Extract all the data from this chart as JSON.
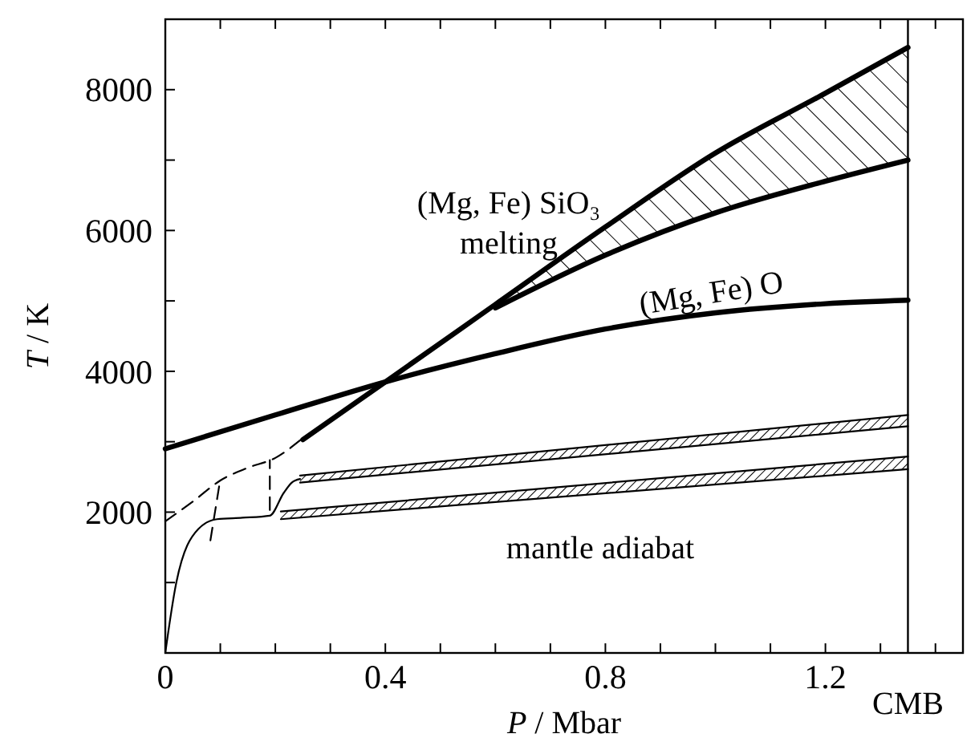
{
  "chart_data": {
    "type": "line",
    "xlabel": "P / Mbar",
    "ylabel": "T / K",
    "xlim": [
      0,
      1.45
    ],
    "ylim": [
      0,
      9000
    ],
    "xticks": [
      0,
      {
        "value": 0.1,
        "label": null
      },
      {
        "value": 0.2,
        "label": null
      },
      {
        "value": 0.3,
        "label": null
      },
      0.4,
      {
        "value": 0.5,
        "label": null
      },
      {
        "value": 0.6,
        "label": null
      },
      {
        "value": 0.7,
        "label": null
      },
      0.8,
      {
        "value": 0.9,
        "label": null
      },
      {
        "value": 1.0,
        "label": null
      },
      {
        "value": 1.1,
        "label": null
      },
      1.2,
      {
        "value": 1.3,
        "label": null
      },
      {
        "value": 1.4,
        "label": null
      }
    ],
    "yticks": [
      {
        "value": 1000,
        "label": null
      },
      2000,
      {
        "value": 3000,
        "label": null
      },
      4000,
      {
        "value": 5000,
        "label": null
      },
      6000,
      {
        "value": 7000,
        "label": null
      },
      8000
    ],
    "grid": false,
    "series": [
      {
        "color": "#000000",
        "x": [
          0,
          0.2,
          0.4,
          0.6,
          0.8,
          1.0,
          1.2,
          1.35
        ],
        "values": [
          2900,
          3380,
          3850,
          4250,
          4600,
          4830,
          4960,
          5010
        ]
      },
      {
        "color": "#000000",
        "x": [
          0.25,
          0.4,
          0.6,
          0.8,
          1.0,
          1.2,
          1.35
        ],
        "values": [
          3030,
          3850,
          4950,
          6050,
          7100,
          7950,
          8600
        ],
        "lower": [
          null,
          null,
          4900,
          5650,
          6250,
          6700,
          7000
        ],
        "upper": [
          null,
          null,
          4950,
          6050,
          7100,
          7950,
          8600
        ]
      },
      {
        "color": "#000000",
        "x": [
          0.6,
          0.8,
          1.0,
          1.2,
          1.35
        ],
        "values": [
          4900,
          5650,
          6250,
          6700,
          7000
        ]
      },
      {
        "color": "#000000",
        "line_style": "dashed",
        "x": [
          0,
          0.05,
          0.1,
          0.15,
          0.2,
          0.245
        ],
        "values": [
          1870,
          2150,
          2450,
          2630,
          2770,
          3020
        ]
      },
      {
        "color": "#000000",
        "line_style": "dashed",
        "x": [
          0.082,
          0.1
        ],
        "values": [
          1600,
          2470
        ]
      },
      {
        "color": "#000000",
        "line_style": "dashed",
        "x": [
          0.19,
          0.19
        ],
        "values": [
          2030,
          2740
        ]
      },
      {
        "color": "#000000",
        "x": [
          0,
          0.02,
          0.06,
          0.094,
          0.14,
          0.19,
          0.215,
          0.23,
          0.245
        ],
        "values": [
          0,
          1000,
          1760,
          1900,
          1920,
          1950,
          2270,
          2420,
          2470
        ]
      },
      {
        "color": "#000000",
        "x": [
          0.245,
          1.35
        ],
        "values": [
          2520,
          3380
        ],
        "lower": [
          2420,
          3220
        ],
        "upper": [
          2520,
          3380
        ]
      },
      {
        "color": "#000000",
        "x": [
          0.245,
          1.35
        ],
        "values": [
          2420,
          3220
        ]
      },
      {
        "color": "#000000",
        "x": [
          0.21,
          1.35
        ],
        "values": [
          2010,
          2790
        ],
        "lower": [
          1900,
          2610
        ],
        "upper": [
          2010,
          2790
        ]
      },
      {
        "color": "#000000",
        "x": [
          0.21,
          1.35
        ],
        "values": [
          1900,
          2610
        ]
      }
    ],
    "ref_lines": [
      {
        "axis": "x",
        "value": 1.35,
        "label": "CMB",
        "color": "#000000"
      }
    ],
    "annotations": [
      "(Mg, Fe) SiO₃",
      "melting",
      "(Mg, Fe) O",
      "mantle adiabat"
    ]
  }
}
